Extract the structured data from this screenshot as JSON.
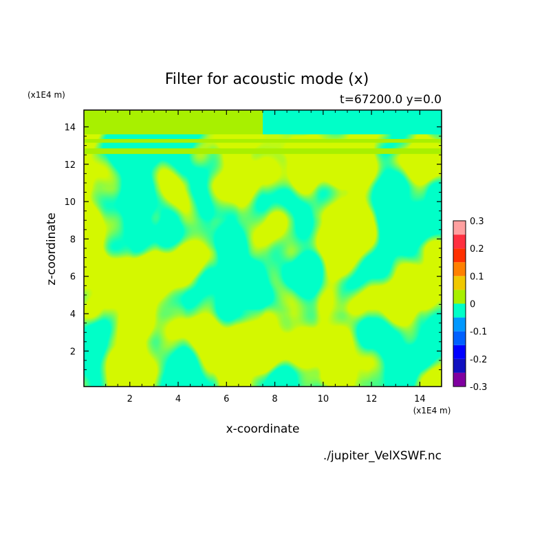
{
  "chart_data": {
    "type": "heatmap",
    "title": "Filter for acoustic mode (x)",
    "subtitle": "t=67200.0 y=0.0",
    "xlabel": "x-coordinate",
    "ylabel": "z-coordinate",
    "x_unit": "(x1E4 m)",
    "y_unit": "(x1E4 m)",
    "xlim": [
      0.1,
      14.9
    ],
    "ylim": [
      0.1,
      14.9
    ],
    "x_ticks": [
      2,
      4,
      6,
      8,
      10,
      12,
      14
    ],
    "y_ticks": [
      2,
      4,
      6,
      8,
      10,
      12,
      14
    ],
    "x_tick_labels": [
      "2",
      "4",
      "6",
      "8",
      "10",
      "12",
      "14"
    ],
    "y_tick_labels": [
      "2",
      "4",
      "6",
      "8",
      "10",
      "12",
      "14"
    ],
    "colorbar": {
      "levels": [
        -0.3,
        -0.25,
        -0.2,
        -0.15,
        -0.1,
        -0.05,
        0,
        0.05,
        0.1,
        0.15,
        0.2,
        0.25,
        0.3
      ],
      "colors": [
        "#8000a0",
        "#1010c0",
        "#0000ff",
        "#0060ff",
        "#0098ff",
        "#00ffc8",
        "#a8f000",
        "#f0c800",
        "#ff8000",
        "#ff3000",
        "#ff3040",
        "#ffa0a0"
      ],
      "labels": [
        "-0.3",
        "-0.2",
        "-0.1",
        "0",
        "0.1",
        "0.2",
        "0.3"
      ],
      "label_values": [
        -0.3,
        -0.2,
        -0.1,
        0,
        0.1,
        0.2,
        0.3
      ]
    },
    "dominant_colors": {
      "positive": "#a8f000",
      "negative": "#00ffc8"
    }
  },
  "footer": {
    "source": "./jupiter_VelXSWF.nc"
  }
}
